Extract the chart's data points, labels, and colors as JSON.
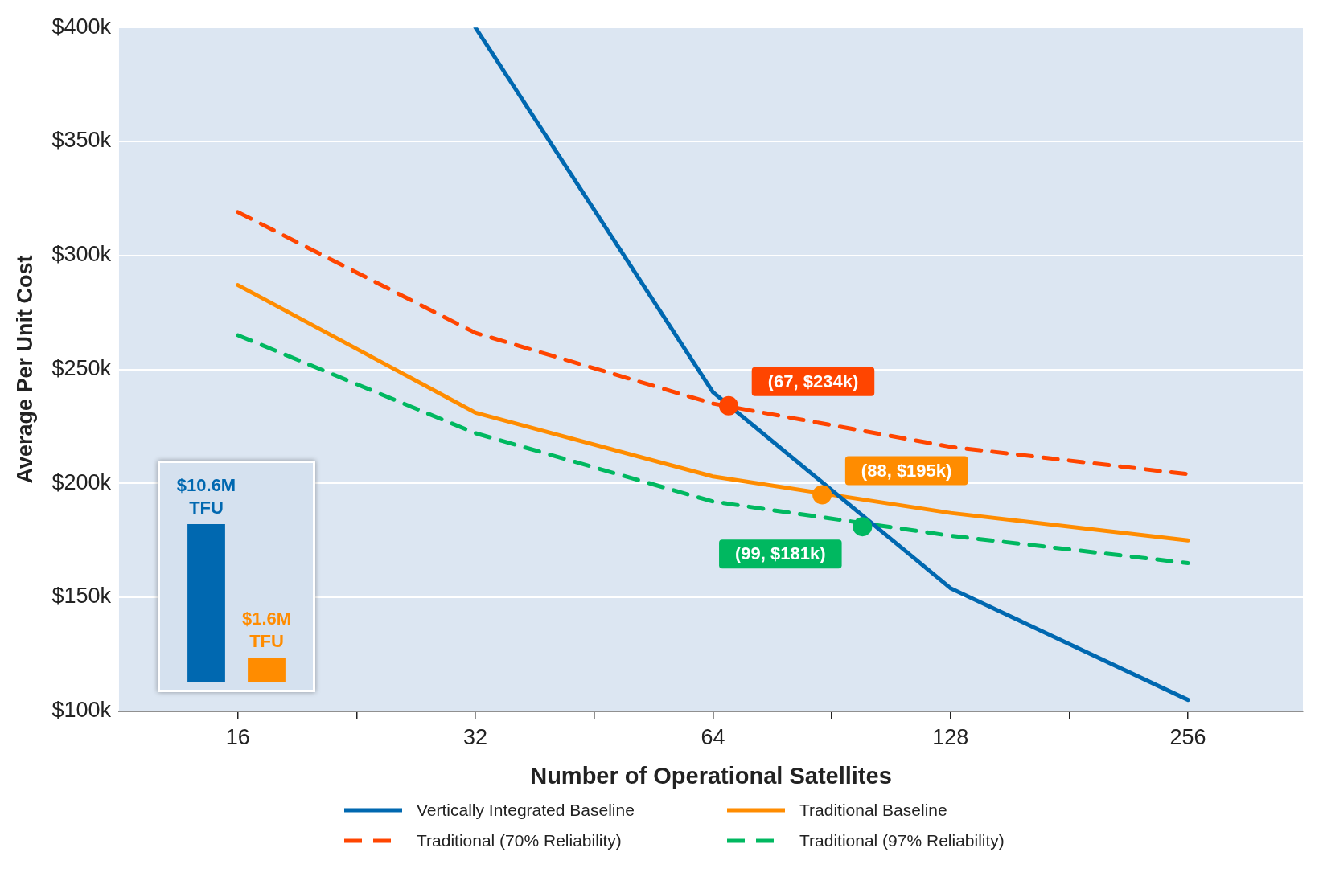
{
  "chart_data": [
    {
      "type": "line",
      "xlabel": "Number of Operational Satellites",
      "ylabel": "Average Per Unit Cost",
      "log": "x",
      "xlim": [
        11.31,
        358
      ],
      "ylim": [
        100,
        400
      ],
      "xticks": [
        16,
        {
          "value": 22.63,
          "label": null
        },
        32,
        {
          "value": 45.25,
          "label": null
        },
        64,
        {
          "value": 90.51,
          "label": null
        },
        128,
        {
          "value": 181,
          "label": null
        },
        256
      ],
      "yticks": [
        {
          "value": 100,
          "label": "$100k"
        },
        {
          "value": 150,
          "label": "$150k"
        },
        {
          "value": 200,
          "label": "$200k"
        },
        {
          "value": 250,
          "label": "$250k"
        },
        {
          "value": 300,
          "label": "$300k"
        },
        {
          "value": 350,
          "label": "$350k"
        },
        {
          "value": 400,
          "label": "$400k"
        }
      ],
      "grid": "y",
      "legend": "bottom",
      "series": [
        {
          "name": "Vertically Integrated Baseline",
          "color": "#0068b0",
          "line_style": "solid",
          "x": [
            32,
            64,
            128,
            256
          ],
          "values": [
            400,
            240,
            154,
            105
          ]
        },
        {
          "name": "Traditional Baseline",
          "color": "#ff8c00",
          "line_style": "solid",
          "x": [
            16,
            32,
            64,
            128,
            256
          ],
          "values": [
            287,
            231,
            203,
            187,
            175
          ]
        },
        {
          "name": "Traditional (70% Reliability)",
          "color": "#ff4500",
          "line_style": "dashed",
          "x": [
            16,
            32,
            64,
            128,
            256
          ],
          "values": [
            319,
            266,
            235,
            216,
            204
          ]
        },
        {
          "name": "Traditional (97% Reliability)",
          "color": "#00b860",
          "line_style": "dashed",
          "x": [
            16,
            32,
            64,
            128,
            256
          ],
          "values": [
            265,
            222,
            192,
            177,
            165
          ]
        },
        {
          "type": "scatter",
          "marker": "circle",
          "color": "#ff4500",
          "x": [
            67
          ],
          "values": [
            234
          ]
        },
        {
          "type": "scatter",
          "marker": "circle",
          "color": "#ff8c00",
          "x": [
            88
          ],
          "values": [
            195
          ]
        },
        {
          "type": "scatter",
          "marker": "circle",
          "color": "#00b860",
          "x": [
            99
          ],
          "values": [
            181
          ]
        }
      ],
      "annotations": [
        {
          "text": "(67, $234k)",
          "x": 67,
          "y": 234
        },
        {
          "text": "(88, $195k)",
          "x": 88,
          "y": 195
        },
        {
          "text": "(99, $181k)",
          "x": 99,
          "y": 181
        }
      ]
    },
    {
      "type": "bar",
      "tick_labels": false,
      "categories": [
        null,
        null
      ],
      "values": [
        10.6,
        1.6
      ],
      "colors": [
        "#0068b0",
        "#ff8c00"
      ],
      "value_labels": [
        "$10.6M TFU",
        "$1.6M TFU"
      ]
    }
  ]
}
